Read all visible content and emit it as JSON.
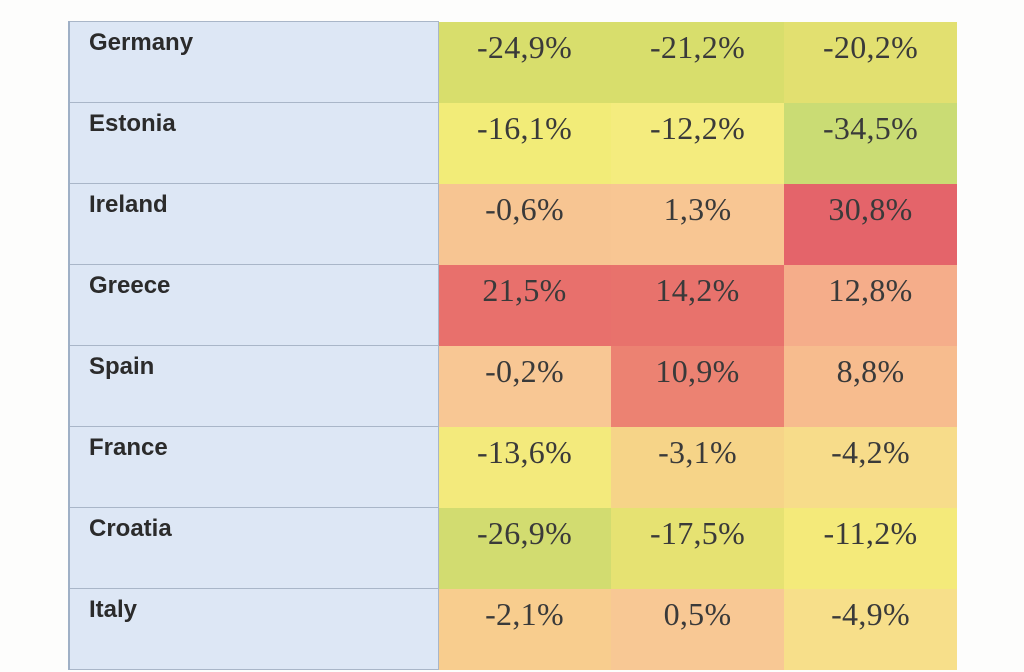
{
  "rows": [
    {
      "country": "Germany",
      "values": [
        "-24,9%",
        "-21,2%",
        "-20,2%"
      ],
      "colors": [
        "#d8de6c",
        "#d8de6c",
        "#e2e070"
      ]
    },
    {
      "country": "Estonia",
      "values": [
        "-16,1%",
        "-12,2%",
        "-34,5%"
      ],
      "colors": [
        "#f2ec78",
        "#f4ec7e",
        "#cadc74"
      ]
    },
    {
      "country": "Ireland",
      "values": [
        "-0,6%",
        "1,3%",
        "30,8%"
      ],
      "colors": [
        "#f7c592",
        "#f8c693",
        "#e4646a"
      ]
    },
    {
      "country": "Greece",
      "values": [
        "21,5%",
        "14,2%",
        "12,8%"
      ],
      "colors": [
        "#e8706c",
        "#e8726c",
        "#f5ad8a"
      ]
    },
    {
      "country": "Spain",
      "values": [
        "-0,2%",
        "10,9%",
        "8,8%"
      ],
      "colors": [
        "#f8c794",
        "#ec8272",
        "#f7bc8e"
      ]
    },
    {
      "country": "France",
      "values": [
        "-13,6%",
        "-3,1%",
        "-4,2%"
      ],
      "colors": [
        "#f3ea7c",
        "#f6d488",
        "#f7dc8a"
      ]
    },
    {
      "country": "Croatia",
      "values": [
        "-26,9%",
        "-17,5%",
        "-11,2%"
      ],
      "colors": [
        "#d2dc70",
        "#e6e272",
        "#f4ea7a"
      ]
    },
    {
      "country": "Italy",
      "values": [
        "-2,1%",
        "0,5%",
        "-4,9%"
      ],
      "colors": [
        "#f8cd8e",
        "#f8c894",
        "#f7df8a"
      ]
    }
  ]
}
